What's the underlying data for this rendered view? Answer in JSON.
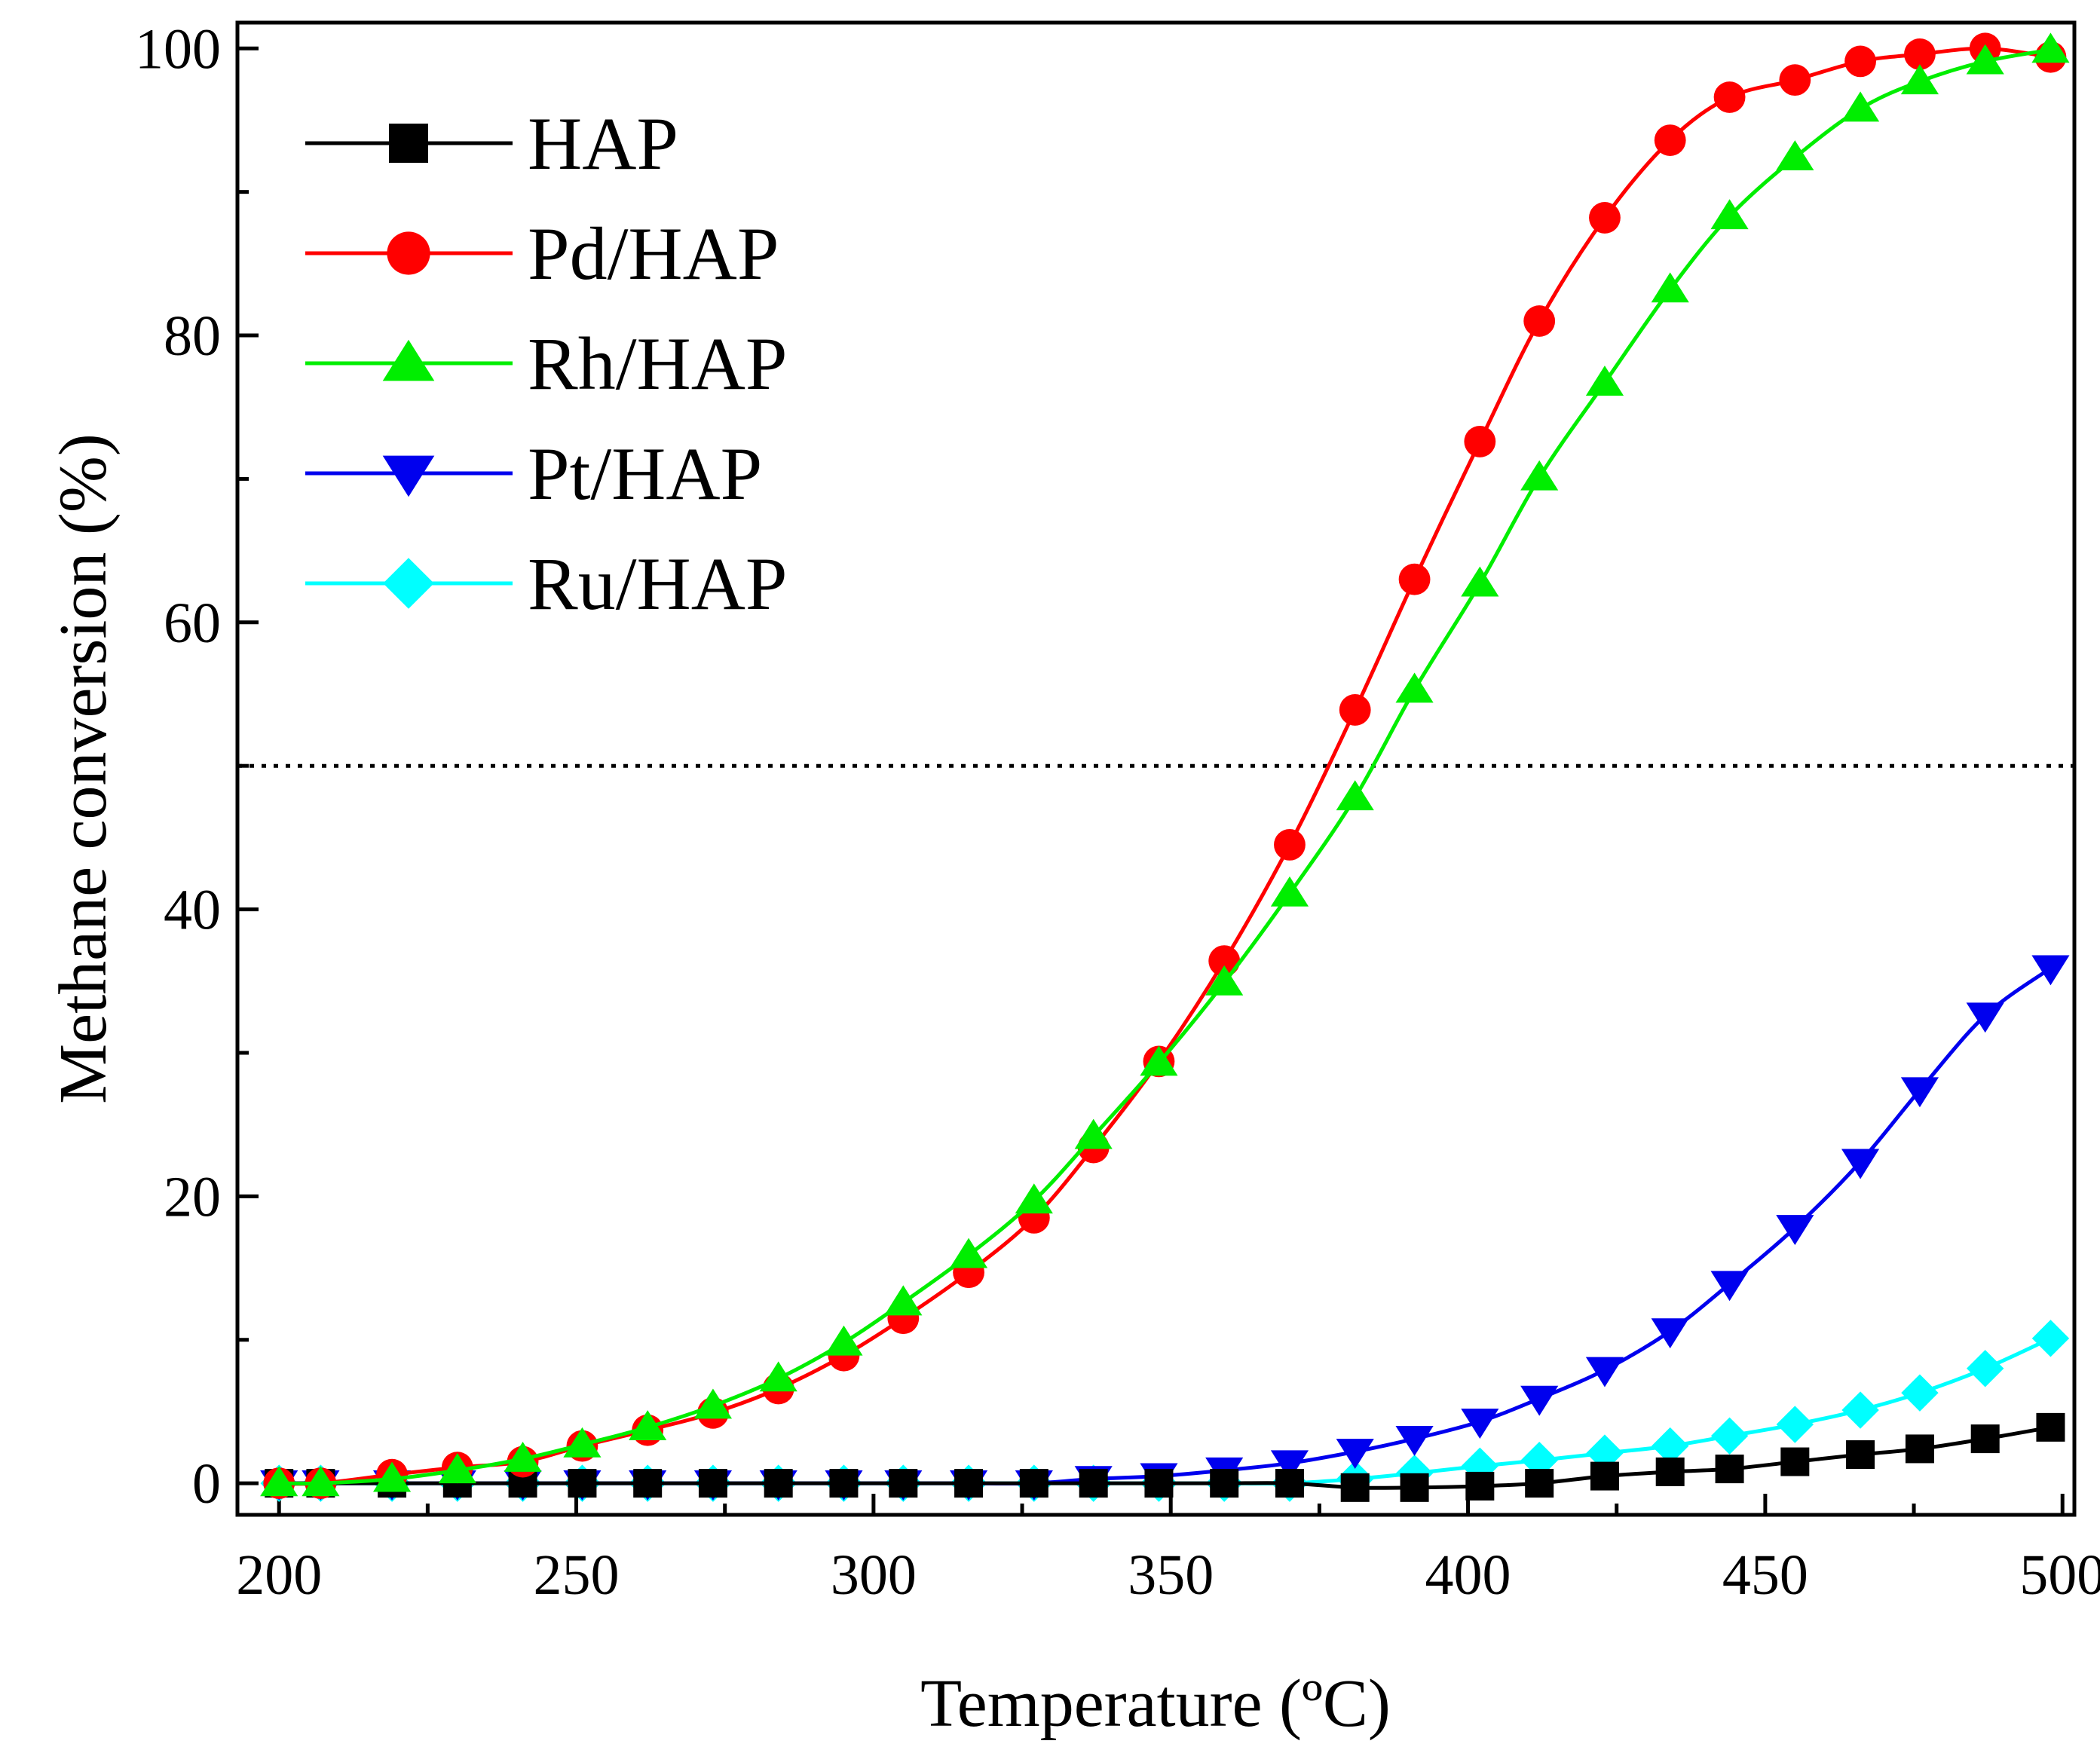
{
  "chart_data": {
    "type": "line",
    "title": "",
    "xlabel": "Temperature (ºC)",
    "ylabel": "Methane conversion (%)",
    "xlim": [
      193,
      502
    ],
    "ylim": [
      -2.2,
      101.8
    ],
    "xticks": [
      200,
      250,
      300,
      350,
      400,
      450,
      500
    ],
    "yticks": [
      0,
      20,
      40,
      60,
      80,
      100
    ],
    "xtick_labels": [
      "200",
      "250",
      "300",
      "350",
      "400",
      "450",
      "500"
    ],
    "ytick_labels": [
      "0",
      "20",
      "40",
      "60",
      "80",
      "100"
    ],
    "grid": false,
    "legend_position": "top-left",
    "reference_line": {
      "y": 50,
      "style": "dotted"
    },
    "x": [
      200,
      207,
      219,
      230,
      241,
      251,
      262,
      273,
      284,
      295,
      305,
      316,
      327,
      337,
      348,
      359,
      370,
      381,
      391,
      402,
      412,
      423,
      434,
      444,
      455,
      466,
      476,
      487,
      498
    ],
    "series": [
      {
        "name": "HAP",
        "marker": "square",
        "color": "#000000",
        "values": [
          0,
          0,
          0,
          0,
          0,
          0,
          0,
          0,
          0,
          0,
          0,
          0,
          0,
          0,
          0,
          0,
          0,
          -0.3,
          -0.3,
          -0.2,
          0,
          0.5,
          0.8,
          1.0,
          1.5,
          2.0,
          2.4,
          3.1,
          3.9
        ]
      },
      {
        "name": "Pd/HAP",
        "marker": "circle",
        "color": "#ff0000",
        "values": [
          0,
          0,
          0.6,
          1.1,
          1.5,
          2.6,
          3.7,
          4.9,
          6.6,
          8.9,
          11.5,
          14.7,
          18.5,
          23.4,
          29.4,
          36.4,
          44.5,
          53.9,
          63.0,
          72.6,
          81.0,
          88.2,
          93.6,
          96.6,
          97.8,
          99.1,
          99.6,
          100.0,
          99.4
        ]
      },
      {
        "name": "Rh/HAP",
        "marker": "triangle-up",
        "color": "#00ee00",
        "values": [
          0,
          0,
          0.3,
          0.9,
          1.7,
          2.7,
          3.9,
          5.4,
          7.3,
          9.8,
          12.6,
          15.9,
          19.7,
          24.2,
          29.3,
          34.9,
          41.1,
          47.8,
          55.3,
          62.7,
          70.1,
          76.7,
          83.2,
          88.3,
          92.4,
          95.8,
          97.7,
          99.1,
          99.9
        ]
      },
      {
        "name": "Pt/HAP",
        "marker": "triangle-down",
        "color": "#0000ee",
        "values": [
          0,
          0,
          0,
          0,
          0,
          0,
          0,
          0,
          0,
          0,
          0,
          0,
          0,
          0.3,
          0.5,
          0.9,
          1.4,
          2.2,
          3.1,
          4.3,
          5.9,
          7.9,
          10.6,
          13.9,
          17.8,
          22.4,
          27.4,
          32.6,
          35.9
        ]
      },
      {
        "name": "Ru/HAP",
        "marker": "diamond",
        "color": "#00ffff",
        "values": [
          0,
          0,
          0,
          0,
          0,
          0,
          0,
          0,
          0,
          0,
          0,
          0,
          0,
          0,
          0,
          0,
          0,
          0.3,
          0.7,
          1.2,
          1.6,
          2.1,
          2.6,
          3.3,
          4.1,
          5.1,
          6.3,
          8.0,
          10.1
        ]
      }
    ]
  }
}
